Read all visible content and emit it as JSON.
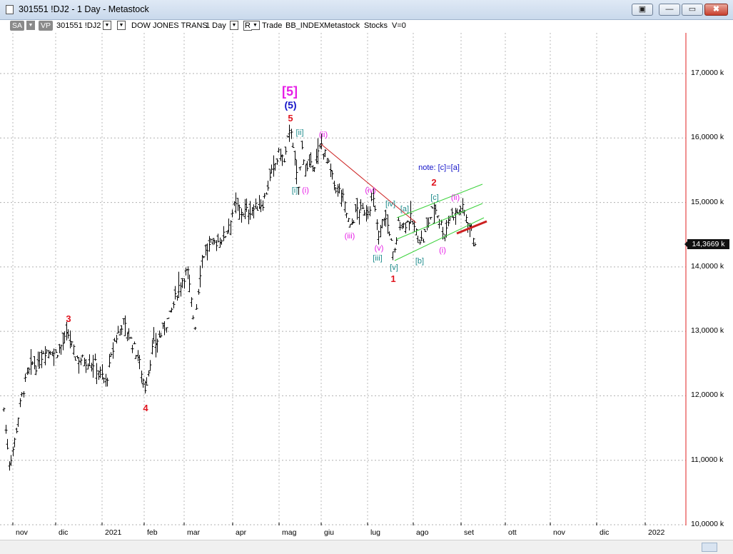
{
  "window": {
    "title": "301551 !DJ2 - 1 Day - Metastock",
    "buttons": [
      "▣",
      "—",
      "▭",
      "✖"
    ]
  },
  "toolbar": {
    "sa": "SA",
    "vp": "VP",
    "symbol": "301551 !DJ2",
    "name": "DOW JONES TRANS",
    "period": "1 Day",
    "r": "R",
    "mode": "Trade",
    "index": "BB_INDEX",
    "source": "Metastock",
    "type": "Stocks",
    "v": "V=0"
  },
  "price_axis": {
    "labels": [
      "17,0000 k",
      "16,0000 k",
      "15,0000 k",
      "14,0000 k",
      "13,0000 k",
      "12,0000 k",
      "11,0000 k",
      "10,0000 k"
    ],
    "last_price": "14,3669 k"
  },
  "date_axis": {
    "labels": [
      "nov",
      "dic",
      "2021",
      "feb",
      "mar",
      "apr",
      "mag",
      "giu",
      "lug",
      "ago",
      "set",
      "ott",
      "nov",
      "dic",
      "2022"
    ]
  },
  "waves": {
    "major5": "[5]",
    "inter5": "(5)",
    "red5": "5",
    "red3": "3",
    "red4": "4",
    "red1": "1",
    "red2": "2",
    "ii_box": "[ii]",
    "i_box": "[i]",
    "i_pink": "(i)",
    "ii_pink": "(ii)",
    "iii_pink": "(iii)",
    "iv_pink": "(iv)",
    "v_pink": "(v)",
    "iii_box": "[iii]",
    "iv_box": "[iv]",
    "v_box": "[v]",
    "a_box": "[a]",
    "b_box": "[b]",
    "c_box": "[c]",
    "i_pink2": "(i)",
    "ii_pink2": "(ii)",
    "note": "note: [c]=[a]"
  },
  "colors": {
    "red": "#e0141e",
    "magenta": "#e61ee6",
    "navy": "#1414c8",
    "teal": "#1e8c8c",
    "green": "#3cd23c",
    "trend": "#cc2020"
  },
  "chart_data": {
    "type": "ohlc",
    "title": "DOW JONES TRANS",
    "ylim": [
      10000,
      17700
    ],
    "series": [
      {
        "name": "301551 !DJ2",
        "values": [
          {
            "x": "2020-10-22",
            "close": 11800
          },
          {
            "x": "2020-11-02",
            "close": 10950
          },
          {
            "x": "2020-11-13",
            "close": 12200
          },
          {
            "x": "2020-12-07",
            "close": 12950
          },
          {
            "x": "2021-01-14",
            "close": 12150
          },
          {
            "x": "2021-01-20",
            "close": 13150
          },
          {
            "x": "2021-01-29",
            "close": 12100
          },
          {
            "x": "2021-03-09",
            "close": 13200
          },
          {
            "x": "2021-05-07",
            "close": 16150
          },
          {
            "x": "2021-05-17",
            "close": 15400
          },
          {
            "x": "2021-05-28",
            "close": 15900
          },
          {
            "x": "2021-06-15",
            "close": 14600
          },
          {
            "x": "2021-07-06",
            "close": 15050
          },
          {
            "x": "2021-07-20",
            "close": 14100
          },
          {
            "x": "2021-08-05",
            "close": 14950
          },
          {
            "x": "2021-08-20",
            "close": 14500
          },
          {
            "x": "2021-08-26",
            "close": 14900
          },
          {
            "x": "2021-09-08",
            "close": 14367
          }
        ]
      }
    ]
  }
}
